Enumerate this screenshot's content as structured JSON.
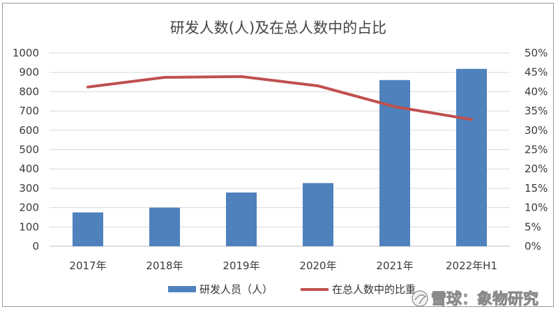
{
  "chart_data": {
    "type": "bar",
    "title": "研发人数(人)及在总人数中的占比",
    "categories": [
      "2017年",
      "2018年",
      "2019年",
      "2020年",
      "2021年",
      "2022年H1"
    ],
    "series": [
      {
        "name": "研发人员（人）",
        "type": "bar",
        "axis": "left",
        "values": [
          175,
          200,
          278,
          327,
          860,
          918
        ],
        "color": "#4f81bd"
      },
      {
        "name": "在总人数中的比重",
        "type": "line",
        "axis": "right",
        "values": [
          0.412,
          0.437,
          0.439,
          0.415,
          0.361,
          0.328
        ],
        "color": "#c0504d"
      }
    ],
    "y_left": {
      "min": 0,
      "max": 1000,
      "step": 100,
      "ticks": [
        "0",
        "100",
        "200",
        "300",
        "400",
        "500",
        "600",
        "700",
        "800",
        "900",
        "1000"
      ]
    },
    "y_right": {
      "min": 0,
      "max": 0.5,
      "step": 0.05,
      "ticks": [
        "0%",
        "5%",
        "10%",
        "15%",
        "20%",
        "25%",
        "30%",
        "35%",
        "40%",
        "45%",
        "50%"
      ]
    },
    "grid": true,
    "legend_position": "bottom"
  },
  "watermark": {
    "logo": "雪球",
    "text": "雪球：象物研究"
  }
}
